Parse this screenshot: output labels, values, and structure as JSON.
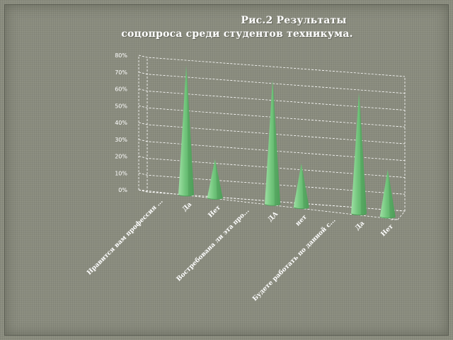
{
  "title": {
    "line1": "Рис.2 Результаты",
    "line2": "соцопроса среди студентов техникума."
  },
  "colors": {
    "background": "#8a8c7e",
    "cone_light": "#9fe0a4",
    "cone_mid": "#6fc47a",
    "cone_dark": "#4f9e5a",
    "grid": "#ffffff",
    "text": "#ffffff"
  },
  "chart_data": {
    "type": "bar",
    "subtype": "3d-cone",
    "title": "Рис.2 Результаты соцопроса среди студентов техникума.",
    "ylim": [
      0,
      0.8
    ],
    "yticks": [
      "0%",
      "10%",
      "20%",
      "30%",
      "40%",
      "50%",
      "60%",
      "70%",
      "80%"
    ],
    "grid": true,
    "gridline_style": "dashed",
    "categories": [
      "Нравится вам профессия ...",
      "Да",
      "Нет",
      "Востребована ли эта про...",
      "ДА",
      "нет",
      "Будете работать по данной с...",
      "Да",
      "Нет"
    ],
    "values": [
      null,
      0.77,
      0.23,
      null,
      0.74,
      0.26,
      null,
      0.72,
      0.28
    ]
  }
}
